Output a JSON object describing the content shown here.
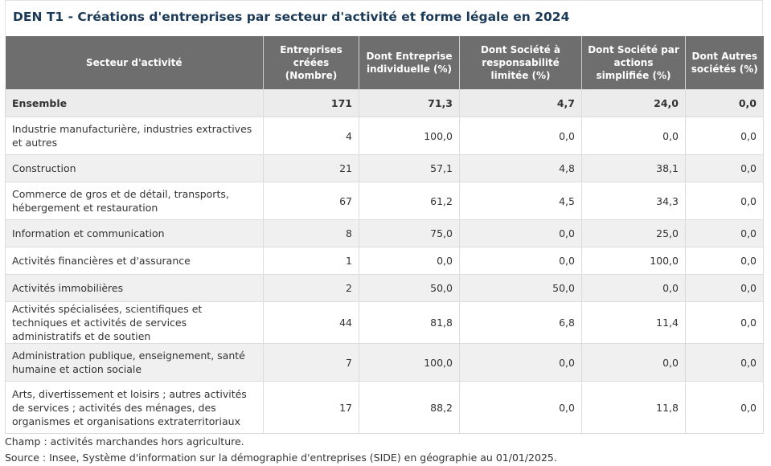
{
  "title": "DEN T1 - Créations d'entreprises par secteur d'activité et forme légale en 2024",
  "table": {
    "headers": [
      "Secteur d'activité",
      "Entreprises créées (Nombre)",
      "Dont Entreprise individuelle (%)",
      "Dont Société à responsabilité limitée (%)",
      "Dont Société par actions simplifiée (%)",
      "Dont Autres sociétés (%)"
    ],
    "rows": [
      [
        "Ensemble",
        "171",
        "71,3",
        "4,7",
        "24,0",
        "0,0"
      ],
      [
        "Industrie manufacturière, industries extractives et autres",
        "4",
        "100,0",
        "0,0",
        "0,0",
        "0,0"
      ],
      [
        "Construction",
        "21",
        "57,1",
        "4,8",
        "38,1",
        "0,0"
      ],
      [
        "Commerce de gros et de détail, transports, hébergement et restauration",
        "67",
        "61,2",
        "4,5",
        "34,3",
        "0,0"
      ],
      [
        "Information et communication",
        "8",
        "75,0",
        "0,0",
        "25,0",
        "0,0"
      ],
      [
        "Activités financières et d'assurance",
        "1",
        "0,0",
        "0,0",
        "100,0",
        "0,0"
      ],
      [
        "Activités immobilières",
        "2",
        "50,0",
        "50,0",
        "0,0",
        "0,0"
      ],
      [
        "Activités spécialisées, scientifiques et techniques et activités de services administratifs et de soutien",
        "44",
        "81,8",
        "6,8",
        "11,4",
        "0,0"
      ],
      [
        "Administration publique, enseignement, santé humaine et action sociale",
        "7",
        "100,0",
        "0,0",
        "0,0",
        "0,0"
      ],
      [
        "Arts, divertissement et loisirs ; autres activités de services ; activités des ménages, des organismes et organisations extraterritoriaux",
        "17",
        "88,2",
        "0,0",
        "11,8",
        "0,0"
      ]
    ]
  },
  "notes": [
    "Champ : activités marchandes hors agriculture.",
    "Source : Insee, Système d'information sur la démographie d'entreprises (SIDE) en géographie au 01/01/2025."
  ],
  "colors": {
    "title": "#1b3a57",
    "header_bg": "#6e6e6e",
    "row_alt_bg": "#f0f0f0"
  }
}
